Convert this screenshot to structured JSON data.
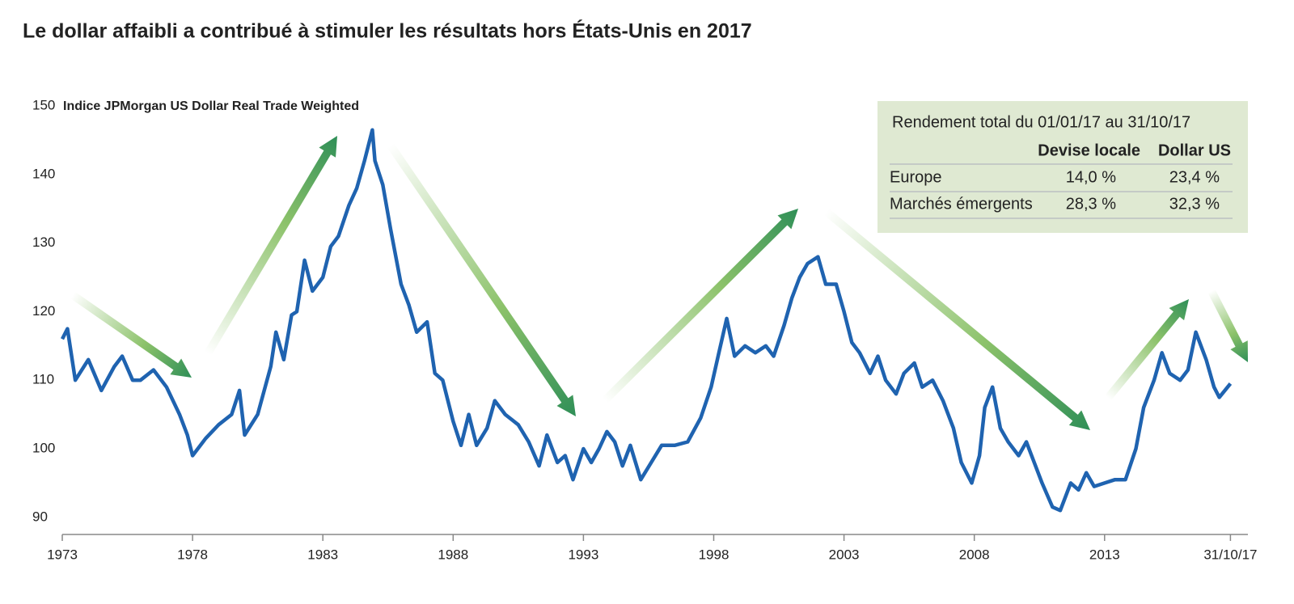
{
  "chart_data": {
    "type": "line",
    "title": "Le dollar affaibli a contribué à stimuler les résultats hors États-Unis en 2017",
    "subtitle": "Indice JPMorgan US Dollar Real Trade Weighted",
    "x": [
      1973.0,
      1973.2,
      1973.5,
      1974.0,
      1974.5,
      1975.0,
      1975.3,
      1975.7,
      1976.0,
      1976.5,
      1977.0,
      1977.5,
      1977.8,
      1978.0,
      1978.5,
      1979.0,
      1979.5,
      1979.8,
      1980.0,
      1980.5,
      1981.0,
      1981.2,
      1981.5,
      1981.8,
      1982.0,
      1982.3,
      1982.6,
      1983.0,
      1983.3,
      1983.6,
      1984.0,
      1984.3,
      1984.6,
      1984.9,
      1985.0,
      1985.3,
      1985.6,
      1986.0,
      1986.3,
      1986.6,
      1987.0,
      1987.3,
      1987.6,
      1988.0,
      1988.3,
      1988.6,
      1988.9,
      1989.3,
      1989.6,
      1990.0,
      1990.5,
      1990.9,
      1991.3,
      1991.6,
      1992.0,
      1992.3,
      1992.6,
      1993.0,
      1993.3,
      1993.6,
      1993.9,
      1994.2,
      1994.5,
      1994.8,
      1995.2,
      1995.6,
      1996.0,
      1996.5,
      1997.0,
      1997.5,
      1997.9,
      1998.2,
      1998.5,
      1998.8,
      1999.2,
      1999.6,
      2000.0,
      2000.3,
      2000.7,
      2001.0,
      2001.3,
      2001.6,
      2002.0,
      2002.3,
      2002.7,
      2003.0,
      2003.3,
      2003.6,
      2004.0,
      2004.3,
      2004.6,
      2005.0,
      2005.3,
      2005.7,
      2006.0,
      2006.4,
      2006.8,
      2007.2,
      2007.5,
      2007.9,
      2008.2,
      2008.4,
      2008.7,
      2009.0,
      2009.3,
      2009.7,
      2010.0,
      2010.3,
      2010.6,
      2011.0,
      2011.3,
      2011.7,
      2012.0,
      2012.3,
      2012.6,
      2013.0,
      2013.4,
      2013.8,
      2014.2,
      2014.5,
      2014.9,
      2015.2,
      2015.5,
      2015.9,
      2016.2,
      2016.5,
      2016.9,
      2017.2,
      2017.4,
      2017.83
    ],
    "values": [
      116,
      117.5,
      110,
      113,
      108.5,
      112,
      113.5,
      110,
      110,
      111.5,
      109,
      105,
      102,
      99,
      101.5,
      103.5,
      105,
      108.5,
      102,
      105,
      112,
      117,
      113,
      119.5,
      120,
      127.5,
      123,
      125,
      129.5,
      131,
      135.5,
      138,
      142,
      146.5,
      142,
      138.5,
      132,
      124,
      121,
      117,
      118.5,
      111,
      110,
      104,
      100.5,
      105,
      100.5,
      103,
      107,
      105,
      103.5,
      101,
      97.5,
      102,
      98,
      99,
      95.5,
      100,
      98,
      100,
      102.5,
      101,
      97.5,
      100.5,
      95.5,
      98,
      100.5,
      100.5,
      101,
      104.5,
      109,
      114,
      119,
      113.5,
      115,
      114,
      115,
      113.5,
      118,
      122,
      125,
      127,
      128,
      124,
      124,
      120,
      115.5,
      114,
      111,
      113.5,
      110,
      108,
      111,
      112.5,
      109,
      110,
      107,
      103,
      98,
      95,
      99,
      106,
      109,
      103,
      101,
      99,
      101,
      98,
      95,
      91.5,
      91,
      95,
      94,
      96.5,
      94.5,
      95,
      95.5,
      95.5,
      100,
      106,
      110,
      114,
      111,
      110,
      111.5,
      117,
      113,
      109,
      107.5,
      109.5
    ],
    "color": "#1f63b0",
    "xlim": [
      1973,
      2018.5
    ],
    "xticks": [
      1973,
      1978,
      1983,
      1988,
      1993,
      1998,
      2003,
      2008,
      2013,
      {
        "value": 2017.83,
        "label": "31/10/17"
      }
    ],
    "ylim": [
      87.5,
      150
    ],
    "yticks": [
      90,
      100,
      110,
      120,
      130,
      140,
      150
    ],
    "grid": false
  },
  "table": {
    "title": "Rendement total du 01/01/17 au 31/10/17",
    "header": [
      "Devise locale",
      "Dollar US"
    ],
    "rows": [
      [
        "Europe",
        "14,0 %",
        "23,4 %"
      ],
      [
        "Marchés émergents",
        "28,3 %",
        "32,3 %"
      ]
    ]
  }
}
